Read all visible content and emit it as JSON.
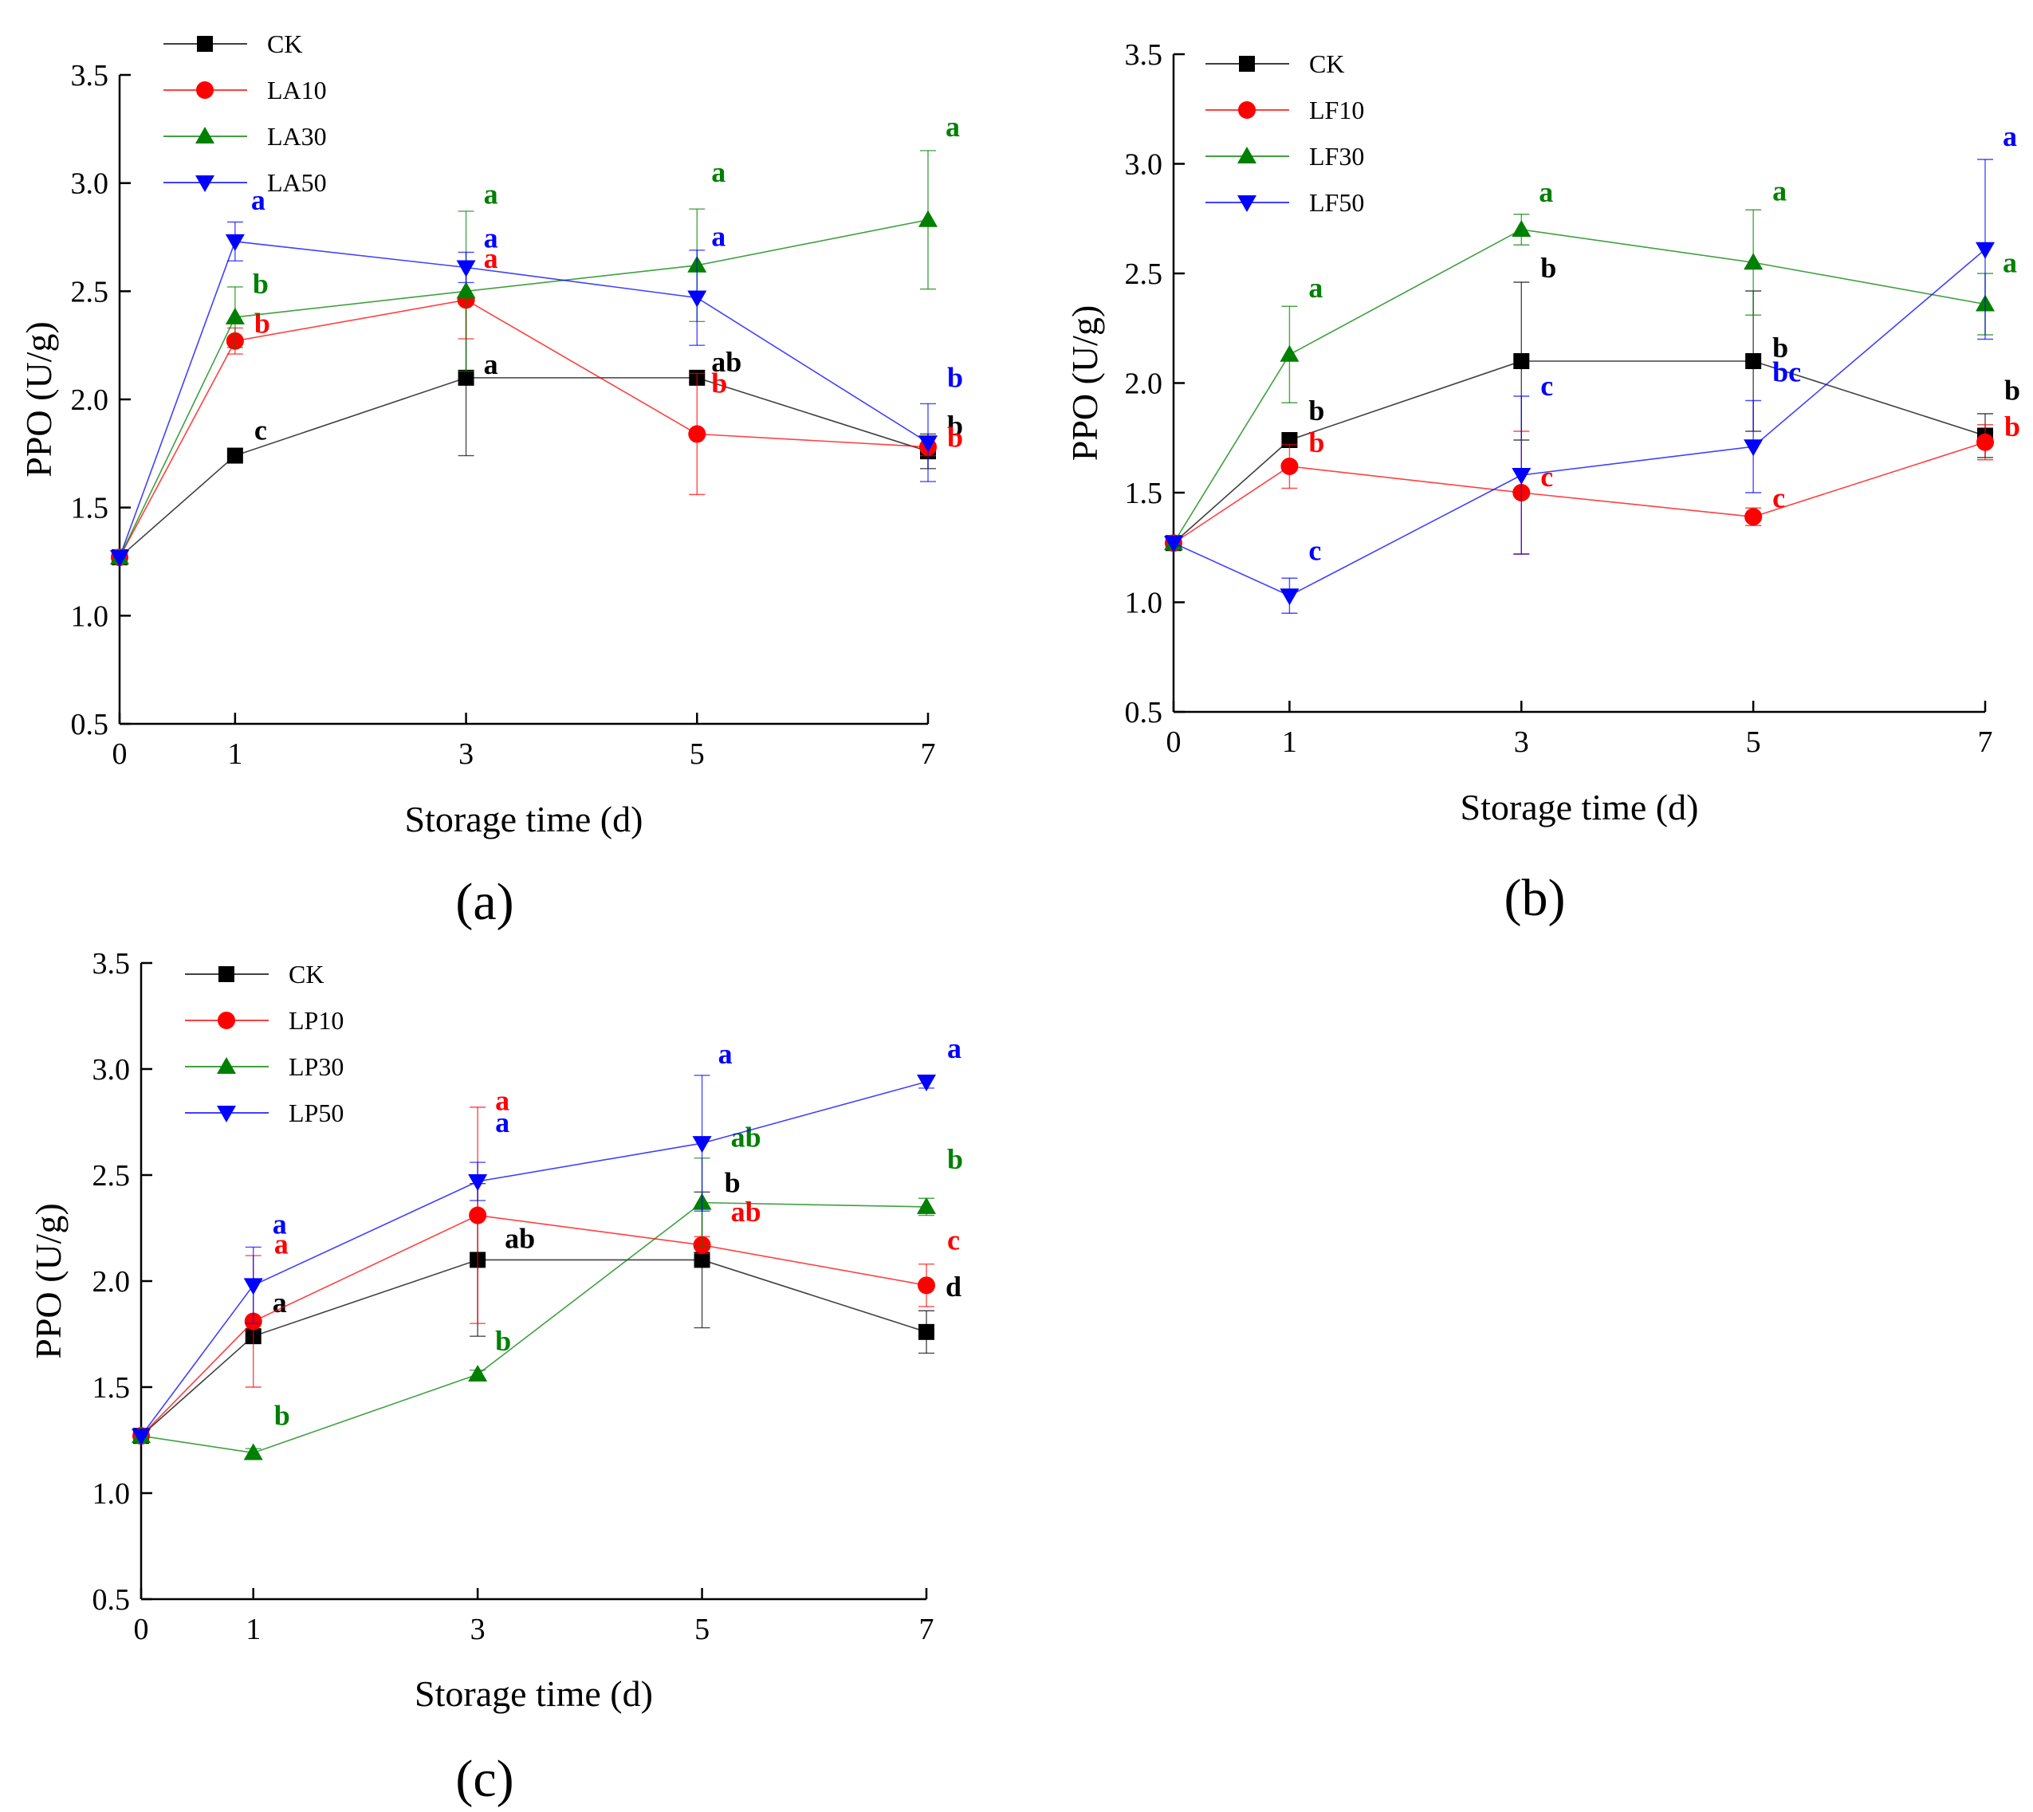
{
  "figure": {
    "xlabel": "Storage time (d)",
    "ylabel": "PPO (U/g)"
  },
  "chart_data": [
    {
      "type": "line",
      "panel_label": "(a)",
      "xlabel": "Storage time (d)",
      "ylabel": "PPO (U/g)",
      "x": [
        0,
        1,
        3,
        5,
        7
      ],
      "xlim": [
        0,
        7
      ],
      "ylim": [
        0.5,
        3.5
      ],
      "x_ticks": [
        "0",
        "1",
        "3",
        "5",
        "7"
      ],
      "y_ticks": [
        "0.5",
        "1.0",
        "1.5",
        "2.0",
        "2.5",
        "3.0",
        "3.5"
      ],
      "legend_position": "top-left",
      "series": [
        {
          "name": "CK",
          "color": "#000000",
          "marker": "square",
          "values": [
            1.27,
            1.74,
            2.1,
            2.1,
            1.76
          ],
          "errors": [
            0,
            0,
            0.36,
            0.02,
            0.08
          ],
          "letters": [
            "",
            "c",
            "a",
            "ab",
            "b"
          ]
        },
        {
          "name": "LA10",
          "color": "#ff0000",
          "marker": "circle",
          "values": [
            1.27,
            2.27,
            2.46,
            1.84,
            1.78
          ],
          "errors": [
            0,
            0.06,
            0.18,
            0.28,
            0.04
          ],
          "letters": [
            "",
            "b",
            "a",
            "b",
            "b"
          ]
        },
        {
          "name": "LA30",
          "color": "#008000",
          "marker": "triangle-up",
          "values": [
            1.27,
            2.38,
            2.5,
            2.62,
            2.83
          ],
          "errors": [
            0,
            0.14,
            0.37,
            0.26,
            0.32
          ],
          "letters": [
            "",
            "b",
            "a",
            "a",
            "a"
          ]
        },
        {
          "name": "LA50",
          "color": "#0000ff",
          "marker": "triangle-down",
          "values": [
            1.27,
            2.73,
            2.61,
            2.47,
            1.8
          ],
          "errors": [
            0,
            0.09,
            0.07,
            0.22,
            0.18
          ],
          "letters": [
            "",
            "a",
            "a",
            "a",
            "b"
          ]
        }
      ]
    },
    {
      "type": "line",
      "panel_label": "(b)",
      "xlabel": "Storage time (d)",
      "ylabel": "PPO (U/g)",
      "x": [
        0,
        1,
        3,
        5,
        7
      ],
      "xlim": [
        0,
        7
      ],
      "ylim": [
        0.5,
        3.5
      ],
      "x_ticks": [
        "0",
        "1",
        "3",
        "5",
        "7"
      ],
      "y_ticks": [
        "0.5",
        "1.0",
        "1.5",
        "2.0",
        "2.5",
        "3.0",
        "3.5"
      ],
      "legend_position": "top-left",
      "series": [
        {
          "name": "CK",
          "color": "#000000",
          "marker": "square",
          "values": [
            1.27,
            1.74,
            2.1,
            2.1,
            1.76
          ],
          "errors": [
            0,
            0,
            0.36,
            0.32,
            0.1
          ],
          "letters": [
            "",
            "b",
            "b",
            "b",
            "b"
          ]
        },
        {
          "name": "LF10",
          "color": "#ff0000",
          "marker": "circle",
          "values": [
            1.27,
            1.62,
            1.5,
            1.39,
            1.73
          ],
          "errors": [
            0,
            0.1,
            0.28,
            0.04,
            0.08
          ],
          "letters": [
            "",
            "b",
            "c",
            "c",
            "b"
          ]
        },
        {
          "name": "LF30",
          "color": "#008000",
          "marker": "triangle-up",
          "values": [
            1.27,
            2.13,
            2.7,
            2.55,
            2.36
          ],
          "errors": [
            0,
            0.22,
            0.07,
            0.24,
            0.14
          ],
          "letters": [
            "",
            "a",
            "a",
            "a",
            "a"
          ]
        },
        {
          "name": "LF50",
          "color": "#0000ff",
          "marker": "triangle-down",
          "values": [
            1.27,
            1.03,
            1.58,
            1.71,
            2.61
          ],
          "errors": [
            0,
            0.08,
            0.36,
            0.21,
            0.41
          ],
          "letters": [
            "",
            "c",
            "c",
            "bc",
            "a"
          ]
        }
      ]
    },
    {
      "type": "line",
      "panel_label": "(c)",
      "xlabel": "Storage time (d)",
      "ylabel": "PPO (U/g)",
      "x": [
        0,
        1,
        3,
        5,
        7
      ],
      "xlim": [
        0,
        7
      ],
      "ylim": [
        0.5,
        3.5
      ],
      "x_ticks": [
        "0",
        "1",
        "3",
        "5",
        "7"
      ],
      "y_ticks": [
        "0.5",
        "1.0",
        "1.5",
        "2.0",
        "2.5",
        "3.0",
        "3.5"
      ],
      "legend_position": "top-left",
      "series": [
        {
          "name": "CK",
          "color": "#000000",
          "marker": "square",
          "values": [
            1.27,
            1.74,
            2.1,
            2.1,
            1.76
          ],
          "errors": [
            0,
            0,
            0.36,
            0.32,
            0.1
          ],
          "letters": [
            "",
            "a",
            "ab",
            "b",
            "d"
          ]
        },
        {
          "name": "LP10",
          "color": "#ff0000",
          "marker": "circle",
          "values": [
            1.27,
            1.81,
            2.31,
            2.17,
            1.98
          ],
          "errors": [
            0,
            0.31,
            0.51,
            0.04,
            0.1
          ],
          "letters": [
            "",
            "a",
            "a",
            "ab",
            "c"
          ]
        },
        {
          "name": "LP30",
          "color": "#008000",
          "marker": "triangle-up",
          "values": [
            1.27,
            1.19,
            1.56,
            2.37,
            2.35
          ],
          "errors": [
            0,
            0.02,
            0.02,
            0.21,
            0.04
          ],
          "letters": [
            "",
            "b",
            "b",
            "ab",
            "b"
          ]
        },
        {
          "name": "LP50",
          "color": "#0000ff",
          "marker": "triangle-down",
          "values": [
            1.27,
            1.98,
            2.47,
            2.65,
            2.94
          ],
          "errors": [
            0,
            0.18,
            0.09,
            0.32,
            0.03
          ],
          "letters": [
            "",
            "a",
            "a",
            "a",
            "a"
          ]
        }
      ]
    }
  ]
}
